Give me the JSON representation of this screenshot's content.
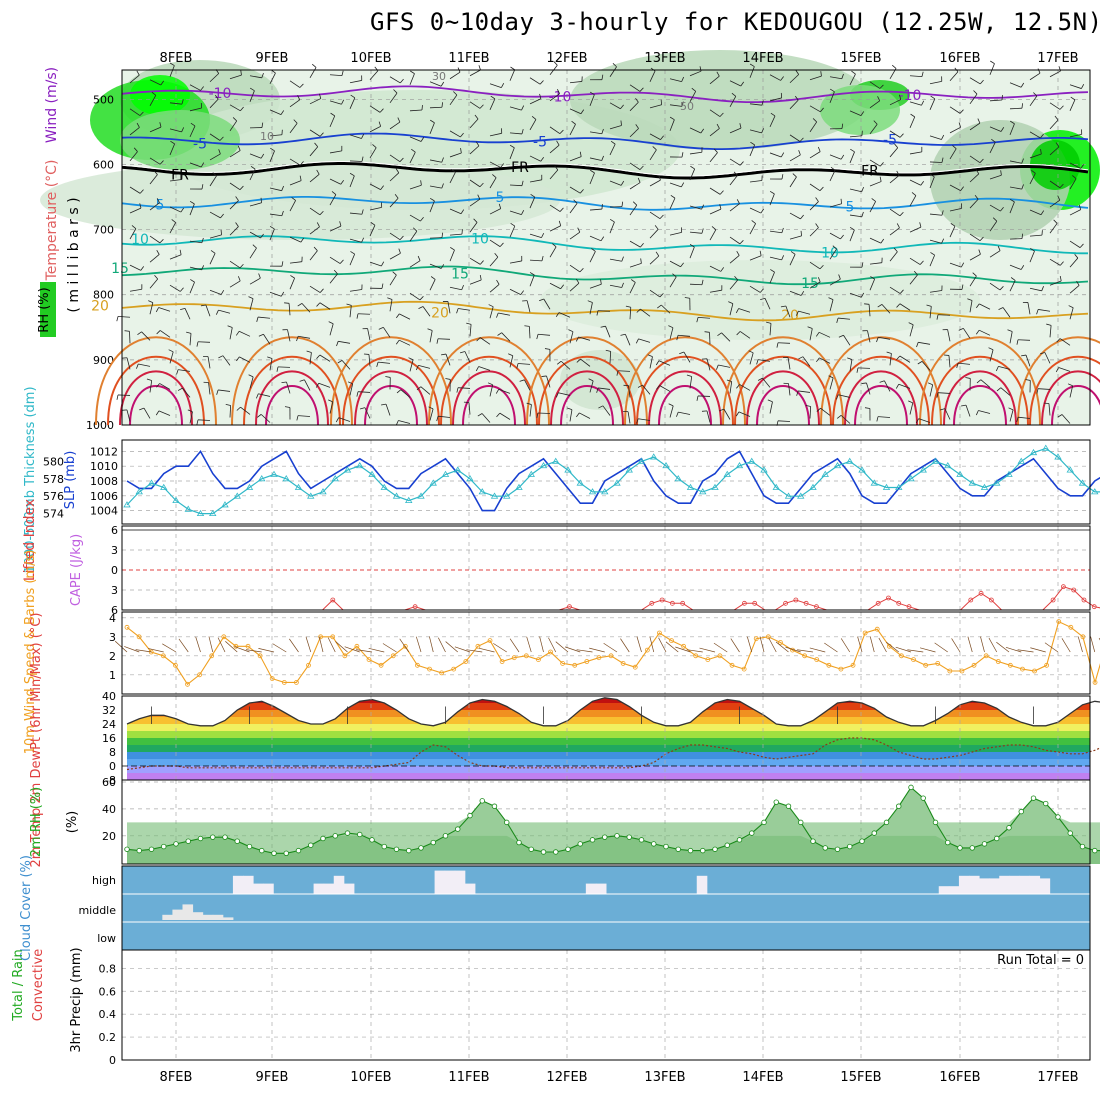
{
  "title": "GFS 0~10day 3-hourly for KEDOUGOU (12.25W, 12.5N)",
  "chart_data": {
    "type": "meteogram",
    "dates": [
      "8FEB",
      "9FEB",
      "10FEB",
      "11FEB",
      "12FEB",
      "13FEB",
      "14FEB",
      "15FEB",
      "16FEB",
      "17FEB"
    ],
    "panels": {
      "upper_air": {
        "ylabel_parts": [
          "Wind (m/s)",
          "Temperature (°C)",
          "RH (%)"
        ],
        "ylabel_axis": "( m i l l i b a r s )",
        "pressure_ticks": [
          500,
          600,
          700,
          800,
          900,
          1000
        ],
        "rh_contours": [
          "10",
          "30",
          "50"
        ],
        "freezing_label": "FR",
        "temperature_isotherms": [
          {
            "value": -10,
            "label": "-10",
            "color": "#8a20c0",
            "p": 488
          },
          {
            "value": -5,
            "label": "-5",
            "color": "#1840d0",
            "p": 560
          },
          {
            "value": 0,
            "label": "FR",
            "color": "#000000",
            "p": 605
          },
          {
            "value": 5,
            "label": "5",
            "color": "#1890e0",
            "p": 655
          },
          {
            "value": 10,
            "label": "10",
            "color": "#10b8b8",
            "p": 712
          },
          {
            "value": 15,
            "label": "15",
            "color": "#10a878",
            "p": 760
          },
          {
            "value": 20,
            "label": "20",
            "color": "#d8a020",
            "p": 815
          }
        ]
      },
      "slp_thickness": {
        "ylabel_left": "1000-500mb Thickness (dm)",
        "ylabel_right": "SLP (mb)",
        "thickness_ticks": [
          574,
          576,
          578,
          580
        ],
        "slp_ticks": [
          1004,
          1006,
          1008,
          1010,
          1012
        ],
        "slp": [
          1008,
          1007,
          1007,
          1009,
          1010,
          1010,
          1012,
          1009,
          1007,
          1007,
          1008,
          1010,
          1011,
          1012,
          1009,
          1007,
          1008,
          1009,
          1010,
          1011,
          1010,
          1008,
          1007,
          1007,
          1009,
          1010,
          1011,
          1009,
          1007,
          1004,
          1004,
          1007,
          1009,
          1010,
          1011,
          1009,
          1007,
          1005,
          1005,
          1008,
          1009,
          1010,
          1011,
          1008,
          1006,
          1005,
          1005,
          1008,
          1009,
          1011,
          1012,
          1009,
          1006,
          1005,
          1005,
          1007,
          1009,
          1010,
          1011,
          1009,
          1006,
          1005,
          1005,
          1007,
          1009,
          1010,
          1011,
          1009,
          1007,
          1006,
          1006,
          1008,
          1009,
          1010,
          1011,
          1009,
          1007,
          1006,
          1006,
          1008,
          1009
        ],
        "thickness": [
          575.0,
          576.5,
          577.5,
          577.0,
          575.5,
          574.5,
          574.0,
          574.0,
          575.0,
          576.0,
          577.0,
          578.0,
          578.5,
          578.0,
          577.0,
          576.0,
          576.5,
          578.0,
          579.0,
          579.5,
          578.5,
          577.0,
          576.0,
          575.5,
          576.0,
          577.5,
          578.5,
          579.0,
          578.0,
          576.5,
          576.0,
          576.0,
          577.0,
          578.5,
          579.5,
          580.0,
          579.0,
          577.5,
          576.5,
          576.5,
          577.5,
          579.0,
          580.0,
          580.5,
          579.5,
          578.0,
          577.0,
          576.5,
          577.0,
          578.5,
          579.5,
          580.0,
          579.0,
          577.0,
          576.0,
          576.0,
          577.0,
          578.5,
          579.5,
          580.0,
          579.0,
          577.5,
          577.0,
          577.0,
          578.0,
          579.0,
          580.0,
          579.5,
          578.5,
          577.5,
          577.0,
          577.5,
          578.5,
          580.0,
          581.0,
          581.5,
          580.5,
          579.0,
          577.5,
          576.5,
          576.5
        ]
      },
      "stability": {
        "ylabel_left": "Lifted Index",
        "ylabel_right": "CAPE (J/kg)",
        "ticks": [
          -6,
          -3,
          0,
          3,
          6
        ],
        "lifted_index": [
          6,
          6,
          6,
          6,
          6,
          6,
          6,
          6,
          6,
          6,
          6,
          6,
          6,
          6,
          6,
          6,
          6,
          6,
          6,
          6,
          4.5,
          6,
          6,
          6,
          6,
          6,
          6,
          6,
          5.5,
          6,
          6,
          6,
          6,
          6,
          6,
          6,
          6,
          6,
          6,
          6,
          6,
          6,
          6,
          5.5,
          6,
          6,
          6,
          6,
          6,
          6,
          6,
          5,
          4.5,
          5,
          5,
          6,
          6,
          6,
          6,
          6,
          5,
          5,
          6,
          6,
          5,
          4.5,
          5,
          5.5,
          6,
          6,
          6,
          6,
          6,
          5,
          4.2,
          5,
          5.5,
          6,
          6,
          6,
          6,
          6,
          4.5,
          3.5,
          4.5,
          6,
          6,
          6,
          6,
          6,
          4.5,
          2.5,
          3,
          4.5,
          5.5,
          5.8,
          5.8
        ]
      },
      "wind10m": {
        "ylabel": "10m Wind Speed & Barbs (m/s)",
        "ticks": [
          1,
          2,
          3,
          4
        ],
        "speed": [
          3.5,
          3,
          2.2,
          2,
          1.5,
          0.5,
          1,
          2,
          3,
          2.5,
          2.5,
          2,
          0.8,
          0.6,
          0.6,
          1.5,
          3,
          3,
          2,
          2.5,
          1.8,
          1.5,
          2,
          2.5,
          1.5,
          1.3,
          1.1,
          1.3,
          1.7,
          2.5,
          2.8,
          1.7,
          1.9,
          2,
          1.8,
          2.2,
          1.6,
          1.5,
          1.7,
          1.9,
          2,
          1.6,
          1.4,
          2.3,
          3.2,
          2.8,
          2.5,
          2,
          1.8,
          2,
          1.5,
          1.3,
          2.9,
          3,
          2.7,
          2.3,
          2,
          1.8,
          1.5,
          1.3,
          1.5,
          3.2,
          3.4,
          2.5,
          2,
          1.8,
          1.5,
          1.6,
          1.2,
          1.2,
          1.5,
          2,
          1.7,
          1.5,
          1.3,
          1.2,
          1.5,
          3.8,
          3.5,
          3,
          0.6,
          2.8
        ],
        "barb_speed_fixed_ref": 2.2
      },
      "temperature": {
        "ylabel": "2m Temp 2m DewPt (6hr Min/Max) (°C)",
        "ticks": [
          -8,
          0,
          8,
          16,
          24,
          32,
          40
        ],
        "temp": [
          24,
          27,
          29,
          29,
          27,
          24,
          23,
          23,
          26,
          32,
          36,
          37,
          34,
          30,
          26,
          24,
          24,
          27,
          33,
          37,
          38,
          36,
          32,
          27,
          24,
          23,
          25,
          31,
          36,
          38,
          37,
          34,
          30,
          25,
          23,
          23,
          26,
          32,
          37,
          39,
          38,
          34,
          29,
          25,
          23,
          23,
          25,
          31,
          36,
          38,
          37,
          33,
          29,
          24,
          23,
          23,
          26,
          31,
          36,
          37,
          36,
          33,
          28,
          25,
          23,
          23,
          26,
          30,
          35,
          37,
          36,
          33,
          28,
          25,
          23,
          23,
          25,
          30,
          35,
          37,
          36,
          32,
          28,
          25,
          23
        ],
        "dewpoint": [
          -2,
          -1,
          0,
          0,
          0,
          -1,
          -1,
          -1,
          -1,
          -1,
          -1,
          -1,
          -1,
          -1,
          -1,
          -1,
          -1,
          -1,
          -1,
          -1,
          -1,
          0,
          1,
          2,
          8,
          12,
          11,
          6,
          2,
          0,
          0,
          -1,
          -1,
          -1,
          -1,
          -1,
          -1,
          -1,
          -1,
          -1,
          -1,
          -1,
          0,
          2,
          7,
          10,
          12,
          12,
          11,
          10,
          8,
          7,
          5,
          4,
          5,
          6,
          7,
          12,
          15,
          16,
          16,
          15,
          12,
          8,
          6,
          4,
          4,
          5,
          6,
          8,
          10,
          11,
          12,
          12,
          11,
          9,
          8,
          7,
          7,
          9,
          12,
          15
        ]
      },
      "rh2m": {
        "ylabel": "2m RH (%)",
        "ticks": [
          20,
          40,
          60
        ],
        "rh": [
          10,
          9,
          10,
          12,
          14,
          16,
          18,
          19,
          19,
          16,
          12,
          9,
          7,
          7,
          9,
          13,
          18,
          20,
          22,
          21,
          17,
          12,
          10,
          9,
          11,
          15,
          20,
          25,
          35,
          46,
          42,
          30,
          15,
          10,
          8,
          8,
          10,
          14,
          17,
          19,
          20,
          19,
          17,
          14,
          12,
          10,
          9,
          9,
          10,
          13,
          17,
          22,
          30,
          45,
          42,
          30,
          16,
          11,
          10,
          12,
          16,
          22,
          30,
          42,
          56,
          48,
          30,
          15,
          11,
          11,
          14,
          18,
          26,
          38,
          48,
          44,
          34,
          22,
          12,
          9,
          9,
          10,
          12,
          15,
          17
        ],
        "rh_points_coarse": [
          10,
          9,
          10,
          12,
          14,
          16,
          18,
          19,
          19,
          16,
          12,
          9,
          7,
          7,
          9,
          13,
          18,
          20,
          22,
          21,
          17,
          12,
          10,
          9,
          11,
          15,
          20,
          25,
          35,
          46,
          42,
          30,
          15,
          10,
          8,
          8,
          10,
          14,
          17,
          19,
          20,
          19,
          17,
          14,
          12,
          10,
          9,
          9,
          10,
          13,
          17,
          22,
          30,
          45,
          42,
          30,
          16,
          11,
          10,
          12,
          16,
          22,
          30,
          42,
          56,
          48,
          30,
          15,
          11,
          11,
          14,
          18,
          26,
          38,
          48,
          44,
          34,
          22,
          12,
          9,
          9,
          10,
          12,
          15,
          17
        ]
      },
      "clouds": {
        "ylabel": "Cloud Cover (%)",
        "levels": [
          "high",
          "middle",
          "low"
        ],
        "high": [
          0,
          0,
          0,
          0,
          0,
          0,
          0,
          0,
          0,
          0,
          0,
          70,
          70,
          40,
          40,
          0,
          0,
          0,
          0,
          40,
          40,
          70,
          40,
          0,
          0,
          0,
          0,
          0,
          0,
          0,
          0,
          90,
          90,
          90,
          40,
          0,
          0,
          0,
          0,
          0,
          0,
          0,
          0,
          0,
          0,
          0,
          40,
          40,
          0,
          0,
          0,
          0,
          0,
          0,
          0,
          0,
          0,
          70,
          0,
          0,
          0,
          0,
          0,
          0,
          0,
          0,
          0,
          0,
          0,
          0,
          0,
          0,
          0,
          0,
          0,
          0,
          0,
          0,
          0,
          0,
          0,
          30,
          30,
          70,
          70,
          60,
          60,
          70,
          70,
          70,
          70,
          60,
          0,
          0,
          0,
          0
        ],
        "middle": [
          0,
          0,
          0,
          0,
          20,
          40,
          60,
          30,
          20,
          20,
          10,
          0,
          0,
          0,
          0,
          0,
          0,
          0,
          0,
          0,
          0,
          0,
          0,
          0,
          0,
          0,
          0,
          0,
          0,
          0,
          0,
          0,
          0,
          0,
          0,
          0,
          0,
          0,
          0,
          0,
          0,
          0,
          0,
          0,
          0,
          0,
          0,
          0,
          0,
          0,
          0,
          0,
          0,
          0,
          0,
          0,
          0,
          0,
          0,
          0,
          0,
          0,
          0,
          0,
          0,
          0,
          0,
          0,
          0,
          0,
          0,
          0,
          0,
          0,
          0,
          0,
          0,
          0,
          0,
          0,
          0,
          0,
          0,
          0,
          0,
          0,
          0,
          0,
          0,
          0,
          0,
          0,
          0,
          0
        ]
      },
      "precip": {
        "ylabel_left": "Total / Rain",
        "ylabel_right": "Convective",
        "ylabel": "3hr Precip (mm)",
        "ticks": [
          "0",
          "0.2",
          "0.4",
          "0.6",
          "0.8"
        ],
        "run_total_label": "Run Total = 0",
        "values": [
          0,
          0,
          0,
          0,
          0,
          0,
          0,
          0,
          0,
          0
        ]
      }
    }
  }
}
